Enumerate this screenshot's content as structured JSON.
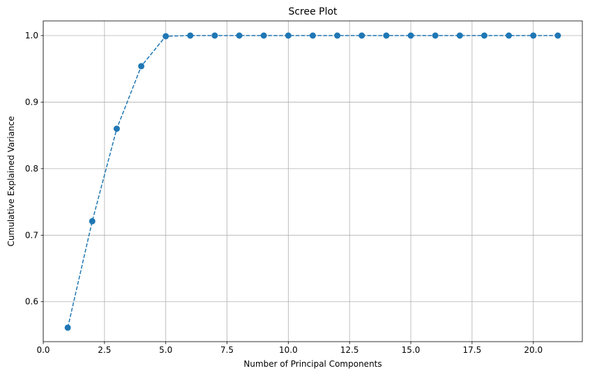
{
  "chart_data": {
    "type": "line",
    "title": "Scree Plot",
    "xlabel": "Number of Principal Components",
    "ylabel": "Cumulative Explained Variance",
    "xlim": [
      0,
      22.0
    ],
    "ylim": [
      0.54,
      1.022
    ],
    "xticks": [
      0.0,
      2.5,
      5.0,
      7.5,
      10.0,
      12.5,
      15.0,
      17.5,
      20.0
    ],
    "xtick_labels": [
      "0.0",
      "2.5",
      "5.0",
      "7.5",
      "10.0",
      "12.5",
      "15.0",
      "17.5",
      "20.0"
    ],
    "yticks": [
      0.6,
      0.7,
      0.8,
      0.9,
      1.0
    ],
    "ytick_labels": [
      "0.6",
      "0.7",
      "0.8",
      "0.9",
      "1.0"
    ],
    "grid": true,
    "line_style": "dashed",
    "marker": "circle",
    "color": "#1f77b4",
    "series": [
      {
        "x": [
          1,
          2,
          3,
          4,
          5,
          6,
          7,
          8,
          9,
          10,
          11,
          12,
          13,
          14,
          15,
          16,
          17,
          18,
          19,
          20,
          21
        ],
        "y": [
          0.561,
          0.721,
          0.86,
          0.954,
          0.999,
          1.0,
          1.0,
          1.0,
          1.0,
          1.0,
          1.0,
          1.0,
          1.0,
          1.0,
          1.0,
          1.0,
          1.0,
          1.0,
          1.0,
          1.0,
          1.0
        ]
      }
    ]
  }
}
